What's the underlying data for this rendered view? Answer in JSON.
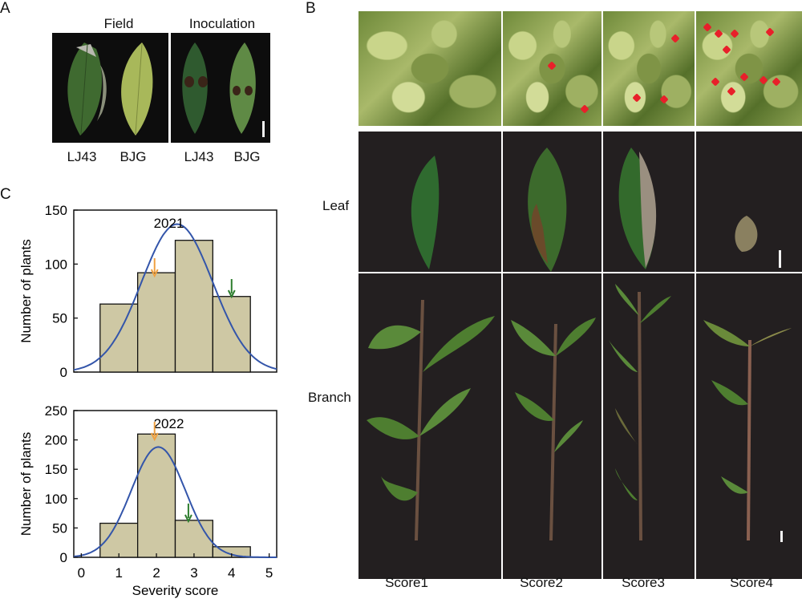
{
  "panelA": {
    "letter": "A",
    "headers": [
      "Field",
      "Inoculation"
    ],
    "labels": [
      "LJ43",
      "BJG",
      "LJ43",
      "BJG"
    ]
  },
  "panelB": {
    "letter": "B",
    "rows": [
      "Leaf",
      "Branch"
    ],
    "scores": [
      "Score1",
      "Score2",
      "Score3",
      "Score4"
    ]
  },
  "panelC": {
    "letter": "C",
    "x_tick_labels": [
      "0",
      "1",
      "2",
      "3",
      "4",
      "5"
    ],
    "xlabel": "Severity score"
  },
  "colors": {
    "bar_fill": "#cec8a4",
    "curve": "#3355aa",
    "arrow_orange": "#f0a040",
    "arrow_green": "#2d7d2d",
    "marker_red": "#e8202a"
  },
  "chart_data": [
    {
      "type": "bar",
      "title": "2021",
      "categories": [
        1,
        2,
        3,
        4
      ],
      "values": [
        63,
        92,
        122,
        70
      ],
      "ylabel": "Number of plants",
      "xlim": [
        -0.2,
        5.2
      ],
      "ylim": [
        0,
        150
      ],
      "yticks": [
        0,
        50,
        100,
        150
      ],
      "normal_fit": {
        "mean": 2.55,
        "sd": 0.95,
        "peak": 137
      },
      "arrows": [
        {
          "color": "orange",
          "x": 1.95
        },
        {
          "color": "green",
          "x": 4.0
        }
      ]
    },
    {
      "type": "bar",
      "title": "2022",
      "categories": [
        1,
        2,
        3,
        4
      ],
      "values": [
        58,
        210,
        63,
        18
      ],
      "ylabel": "Number of plants",
      "xlabel": "Severity score",
      "xlim": [
        -0.2,
        5.2
      ],
      "ylim": [
        0,
        250
      ],
      "yticks": [
        0,
        50,
        100,
        150,
        200,
        250
      ],
      "xticks": [
        0,
        1,
        2,
        3,
        4,
        5
      ],
      "normal_fit": {
        "mean": 2.05,
        "sd": 0.72,
        "peak": 188
      },
      "arrows": [
        {
          "color": "orange",
          "x": 1.95
        },
        {
          "color": "green",
          "x": 2.85
        }
      ]
    }
  ]
}
